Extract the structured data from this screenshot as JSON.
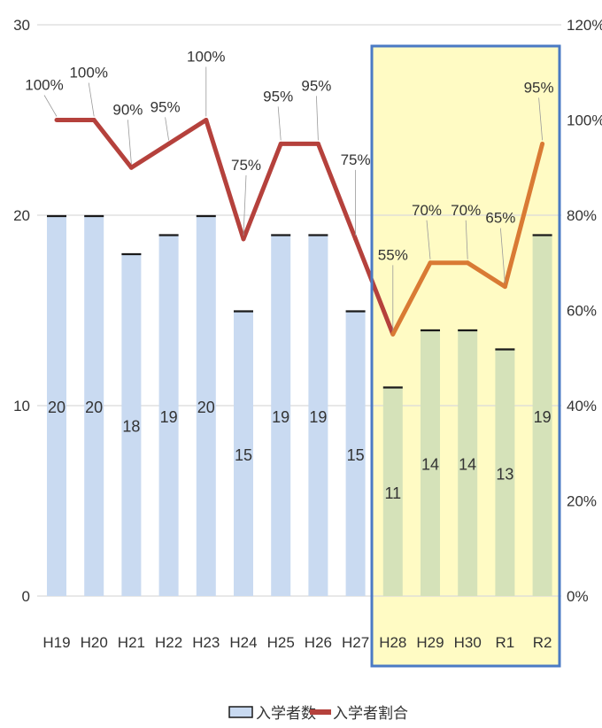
{
  "chart_data": {
    "type": "bar",
    "categories": [
      "H19",
      "H20",
      "H21",
      "H22",
      "H23",
      "H24",
      "H25",
      "H26",
      "H27",
      "H28",
      "H29",
      "H30",
      "R1",
      "R2"
    ],
    "series": [
      {
        "name": "入学者数",
        "type": "bar",
        "axis": "left",
        "values": [
          20,
          20,
          18,
          19,
          20,
          15,
          19,
          19,
          15,
          11,
          14,
          14,
          13,
          19
        ],
        "labels": [
          "20",
          "20",
          "18",
          "19",
          "20",
          "15",
          "19",
          "19",
          "15",
          "11",
          "14",
          "14",
          "13",
          "19"
        ]
      },
      {
        "name": "入学者割合",
        "type": "line",
        "axis": "right",
        "values": [
          100,
          100,
          90,
          95,
          100,
          75,
          95,
          95,
          75,
          55,
          70,
          70,
          65,
          95
        ],
        "labels": [
          "100%",
          "100%",
          "90%",
          "95%",
          "100%",
          "75%",
          "95%",
          "95%",
          "75%",
          "55%",
          "70%",
          "70%",
          "65%",
          "95%"
        ]
      }
    ],
    "ylim_left": [
      0,
      30
    ],
    "left_ticks": [
      "0",
      "10",
      "20",
      "30"
    ],
    "ylim_right": [
      0,
      120
    ],
    "right_ticks": [
      "0%",
      "20%",
      "40%",
      "60%",
      "80%",
      "100%",
      "120%"
    ],
    "highlight": {
      "from": "H28",
      "to": "R2",
      "fill": "#fffbc4",
      "border": "#4a7ac4"
    },
    "colors": {
      "bar_fill": "#c9daf1",
      "bar_fill_highlight": "#d5e2b9",
      "bar_top": "#1a1a1a",
      "line": "#b5413c",
      "line_highlight": "#d97a34",
      "grid": "#d9d9d9"
    },
    "grid": true,
    "legend_position": "bottom"
  }
}
